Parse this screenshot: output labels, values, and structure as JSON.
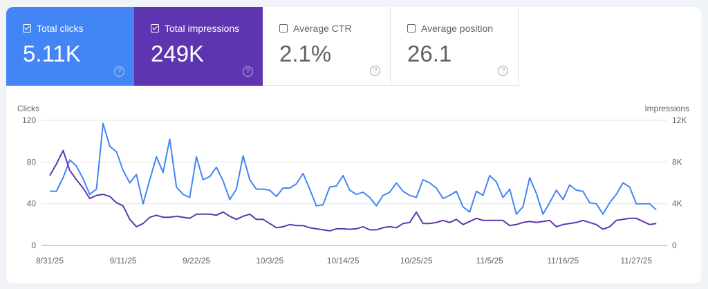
{
  "cards": [
    {
      "label": "Total clicks",
      "value": "5.11K",
      "checked": true,
      "color": "#4285f4"
    },
    {
      "label": "Total impressions",
      "value": "249K",
      "checked": true,
      "color": "#5e35b1"
    },
    {
      "label": "Average CTR",
      "value": "2.1%",
      "checked": false
    },
    {
      "label": "Average position",
      "value": "26.1",
      "checked": false
    }
  ],
  "help_icon": "?",
  "chart_data": {
    "type": "line",
    "left_axis_label": "Clicks",
    "right_axis_label": "Impressions",
    "left_ticks": [
      "0",
      "40",
      "80",
      "120"
    ],
    "right_ticks": [
      "0",
      "4K",
      "8K",
      "12K"
    ],
    "left_ylim": [
      0,
      120
    ],
    "right_ylim": [
      0,
      12000
    ],
    "x_start": "8/31/25",
    "x_end": "11/30/25",
    "x_tick_labels": [
      "8/31/25",
      "9/11/25",
      "9/22/25",
      "10/3/25",
      "10/14/25",
      "10/25/25",
      "11/5/25",
      "11/16/25",
      "11/27/25"
    ],
    "grid": true,
    "series": [
      {
        "name": "Clicks",
        "axis": "left",
        "color": "#4285f4",
        "values": [
          52,
          52,
          65,
          82,
          76,
          64,
          49,
          54,
          117,
          95,
          90,
          72,
          60,
          68,
          40,
          63,
          85,
          70,
          102,
          56,
          49,
          46,
          85,
          63,
          66,
          75,
          62,
          44,
          54,
          86,
          63,
          54,
          54,
          53,
          47,
          55,
          55,
          59,
          69,
          54,
          38,
          39,
          56,
          57,
          67,
          53,
          49,
          51,
          46,
          38,
          48,
          51,
          60,
          52,
          48,
          46,
          63,
          60,
          55,
          45,
          48,
          52,
          37,
          32,
          52,
          48,
          67,
          61,
          46,
          54,
          30,
          37,
          65,
          50,
          30,
          41,
          53,
          44,
          58,
          53,
          52,
          41,
          40,
          30,
          41,
          49,
          60,
          56,
          40,
          40,
          40,
          34
        ]
      },
      {
        "name": "Impressions",
        "axis": "right",
        "color": "#5e35b1",
        "values": [
          6700,
          7800,
          9100,
          7200,
          6300,
          5500,
          4500,
          4800,
          4900,
          4700,
          4100,
          3800,
          2500,
          1800,
          2100,
          2700,
          2900,
          2700,
          2700,
          2800,
          2700,
          2600,
          3000,
          3000,
          3000,
          2900,
          3200,
          2800,
          2500,
          2800,
          3000,
          2500,
          2500,
          2100,
          1700,
          1800,
          2000,
          1900,
          1900,
          1700,
          1600,
          1500,
          1400,
          1600,
          1600,
          1550,
          1600,
          1800,
          1500,
          1500,
          1700,
          1800,
          1700,
          2100,
          2200,
          3200,
          2100,
          2100,
          2200,
          2400,
          2200,
          2500,
          2000,
          2300,
          2600,
          2400,
          2400,
          2400,
          2400,
          1900,
          2000,
          2200,
          2300,
          2200,
          2300,
          2400,
          1800,
          2000,
          2100,
          2200,
          2400,
          2200,
          2000,
          1550,
          1800,
          2400,
          2500,
          2600,
          2600,
          2300,
          2000,
          2100
        ]
      }
    ]
  }
}
